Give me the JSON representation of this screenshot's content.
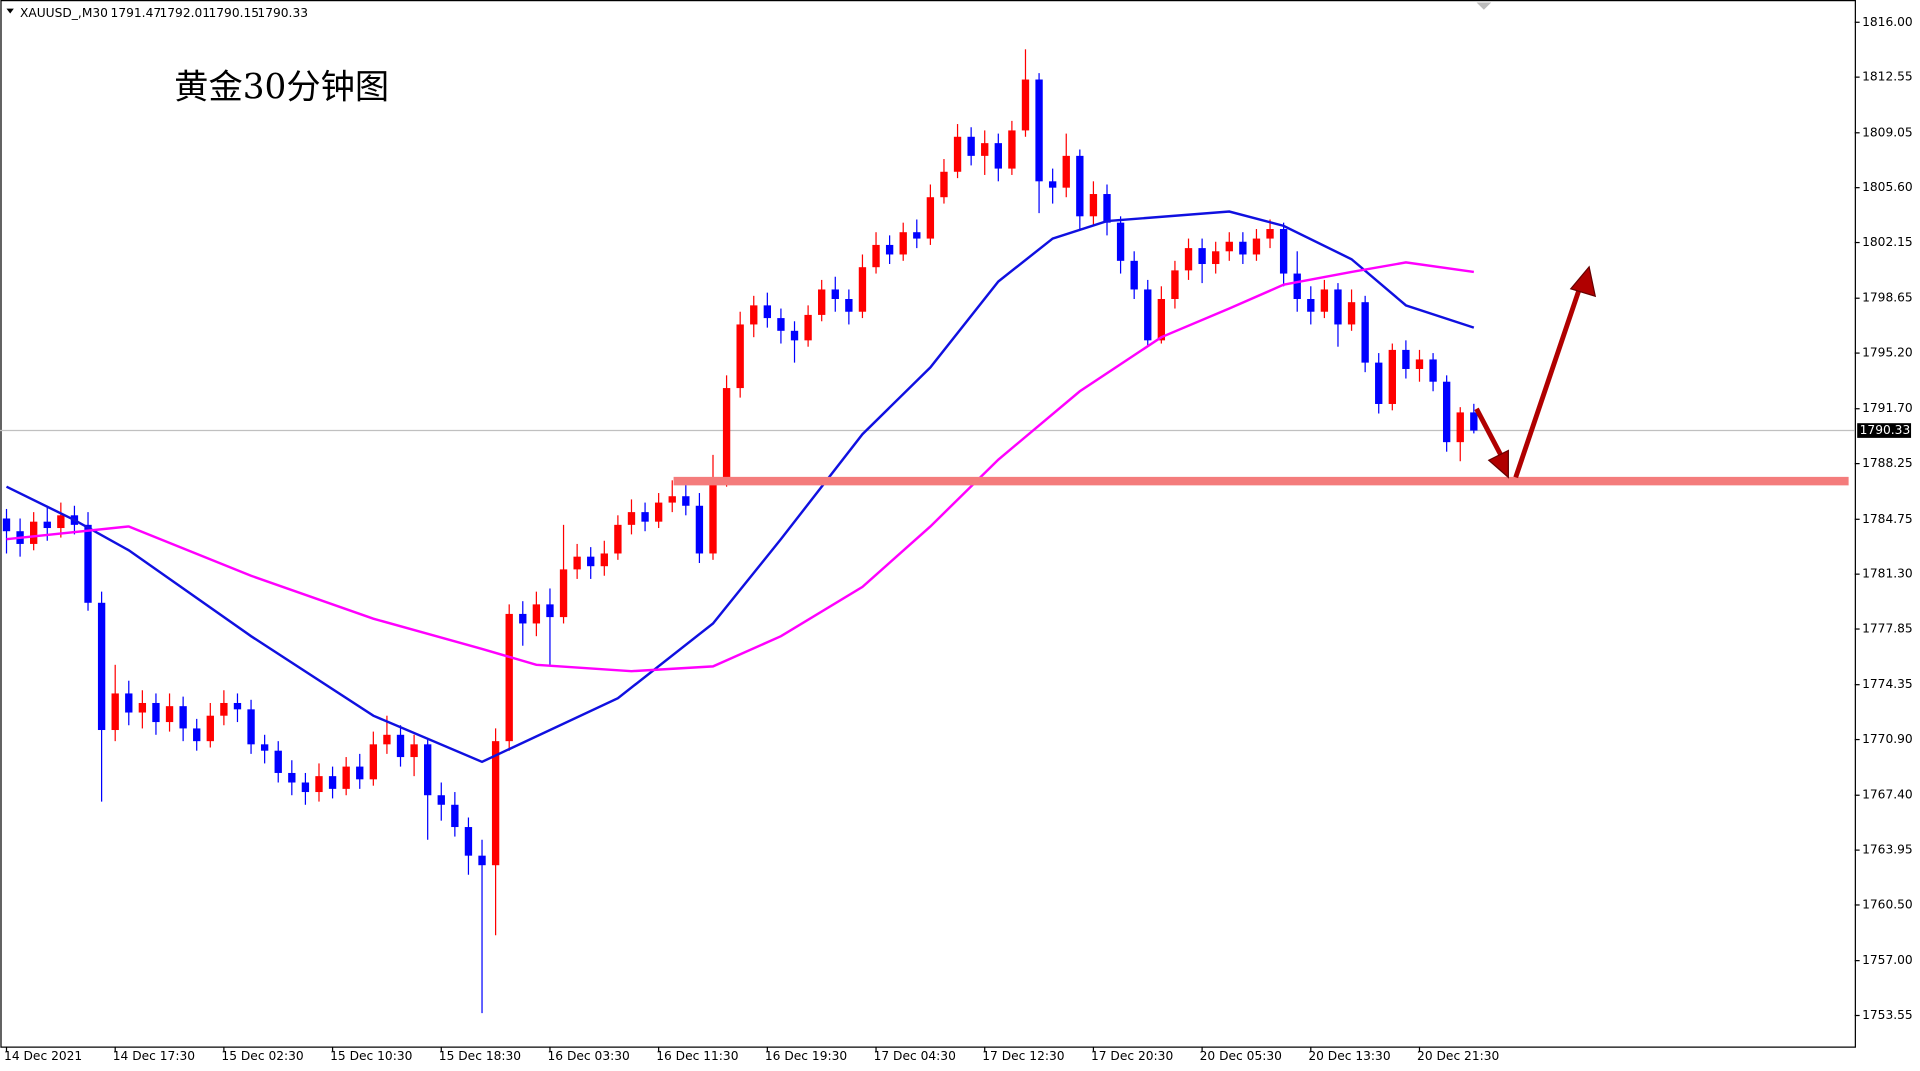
{
  "chart_data": {
    "type": "candlestick",
    "symbol": "XAUUSD_,M30",
    "header_values": [
      1791.47,
      1792.01,
      1790.15,
      1790.33
    ],
    "annotation": "黄金30分钟图",
    "categories": [
      "14 Dec 2021",
      null,
      null,
      null,
      null,
      null,
      null,
      null,
      "14 Dec 17:30",
      null,
      null,
      null,
      null,
      null,
      null,
      null,
      "15 Dec 02:30",
      null,
      null,
      null,
      null,
      null,
      null,
      null,
      "15 Dec 10:30",
      null,
      null,
      null,
      null,
      null,
      null,
      null,
      "15 Dec 18:30",
      null,
      null,
      null,
      null,
      null,
      null,
      null,
      "16 Dec 03:30",
      null,
      null,
      null,
      null,
      null,
      null,
      null,
      "16 Dec 11:30",
      null,
      null,
      null,
      null,
      null,
      null,
      null,
      "16 Dec 19:30",
      null,
      null,
      null,
      null,
      null,
      null,
      null,
      "17 Dec 04:30",
      null,
      null,
      null,
      null,
      null,
      null,
      null,
      "17 Dec 12:30",
      null,
      null,
      null,
      null,
      null,
      null,
      null,
      "17 Dec 20:30",
      null,
      null,
      null,
      null,
      null,
      null,
      null,
      "20 Dec 05:30",
      null,
      null,
      null,
      null,
      null,
      null,
      null,
      "20 Dec 13:30",
      null,
      null,
      null,
      null,
      null,
      null,
      null,
      "20 Dec 21:30",
      null,
      null,
      null,
      null
    ],
    "open": [
      1784.8,
      1784.0,
      1783.2,
      1784.6,
      1784.2,
      1785.0,
      1784.4,
      1779.5,
      1771.5,
      1773.8,
      1772.6,
      1773.2,
      1772.0,
      1773.0,
      1771.6,
      1770.8,
      1772.4,
      1773.2,
      1772.8,
      1770.6,
      1770.2,
      1768.8,
      1768.2,
      1767.6,
      1768.6,
      1767.8,
      1769.2,
      1768.4,
      1770.6,
      1771.2,
      1769.8,
      1770.6,
      1767.4,
      1766.8,
      1765.4,
      1763.6,
      1763.0,
      1770.8,
      1778.8,
      1778.2,
      1779.4,
      1778.6,
      1781.6,
      1782.4,
      1781.8,
      1782.6,
      1784.4,
      1785.2,
      1784.6,
      1785.8,
      1786.2,
      1785.6,
      1782.6,
      1787.2,
      1793.0,
      1797.0,
      1798.2,
      1797.4,
      1796.6,
      1796.0,
      1797.6,
      1799.2,
      1798.6,
      1797.8,
      1800.6,
      1802.0,
      1801.4,
      1802.8,
      1802.4,
      1805.0,
      1806.6,
      1808.8,
      1807.6,
      1808.4,
      1806.8,
      1809.2,
      1812.4,
      1806.0,
      1805.6,
      1807.6,
      1803.8,
      1805.2,
      1803.4,
      1801.0,
      1799.2,
      1796.0,
      1798.6,
      1800.4,
      1801.8,
      1800.8,
      1801.6,
      1802.2,
      1801.4,
      1802.4,
      1803.0,
      1800.2,
      1798.6,
      1797.8,
      1799.2,
      1797.0,
      1798.4,
      1794.6,
      1792.0,
      1795.4,
      1794.2,
      1794.8,
      1793.4,
      1789.6,
      1791.47
    ],
    "high": [
      1785.4,
      1784.8,
      1785.2,
      1785.6,
      1785.8,
      1785.6,
      1785.2,
      1780.2,
      1775.6,
      1774.6,
      1774.0,
      1773.8,
      1773.8,
      1773.6,
      1772.2,
      1773.2,
      1774.0,
      1773.8,
      1773.4,
      1771.2,
      1770.8,
      1769.6,
      1768.8,
      1769.4,
      1769.2,
      1769.8,
      1770.0,
      1771.4,
      1772.4,
      1771.8,
      1771.2,
      1771.0,
      1768.2,
      1767.6,
      1766.0,
      1764.6,
      1771.6,
      1779.4,
      1779.6,
      1780.2,
      1780.4,
      1784.4,
      1783.2,
      1783.0,
      1783.4,
      1785.0,
      1786.0,
      1785.8,
      1786.4,
      1787.2,
      1787.0,
      1786.4,
      1788.8,
      1793.8,
      1797.8,
      1798.8,
      1799.0,
      1798.0,
      1797.2,
      1798.2,
      1799.8,
      1800.0,
      1799.2,
      1801.4,
      1802.8,
      1802.6,
      1803.4,
      1803.6,
      1805.8,
      1807.4,
      1809.6,
      1809.4,
      1809.2,
      1809.0,
      1809.8,
      1814.3,
      1812.8,
      1806.8,
      1809.0,
      1808.0,
      1806.0,
      1805.8,
      1803.8,
      1801.6,
      1799.8,
      1799.4,
      1801.0,
      1802.4,
      1802.4,
      1802.2,
      1802.8,
      1802.8,
      1803.0,
      1803.6,
      1803.4,
      1801.6,
      1799.4,
      1799.8,
      1799.6,
      1799.2,
      1798.8,
      1795.2,
      1795.8,
      1796.0,
      1795.4,
      1795.2,
      1793.8,
      1791.8,
      1792.01
    ],
    "low": [
      1782.6,
      1782.4,
      1782.8,
      1783.4,
      1783.6,
      1783.8,
      1779.0,
      1767.0,
      1770.8,
      1771.8,
      1771.6,
      1771.2,
      1771.4,
      1770.8,
      1770.2,
      1770.4,
      1771.8,
      1772.0,
      1770.0,
      1769.4,
      1768.2,
      1767.4,
      1766.8,
      1767.0,
      1767.2,
      1767.4,
      1767.8,
      1768.0,
      1770.0,
      1769.2,
      1768.6,
      1764.6,
      1765.8,
      1764.8,
      1762.4,
      1753.7,
      1758.6,
      1770.2,
      1776.8,
      1777.4,
      1775.6,
      1778.2,
      1781.0,
      1781.0,
      1781.2,
      1782.2,
      1783.8,
      1784.0,
      1784.2,
      1785.2,
      1785.0,
      1782.0,
      1782.2,
      1786.8,
      1792.4,
      1796.2,
      1796.8,
      1795.8,
      1794.6,
      1795.6,
      1797.2,
      1797.8,
      1797.0,
      1797.4,
      1800.2,
      1800.8,
      1801.0,
      1801.8,
      1802.0,
      1804.6,
      1806.2,
      1807.0,
      1806.4,
      1806.0,
      1806.4,
      1808.8,
      1804.0,
      1804.6,
      1805.0,
      1803.0,
      1803.2,
      1802.6,
      1800.2,
      1798.6,
      1795.6,
      1795.8,
      1798.0,
      1799.8,
      1799.6,
      1800.2,
      1801.0,
      1800.8,
      1801.0,
      1801.8,
      1799.4,
      1797.8,
      1797.0,
      1797.4,
      1795.6,
      1796.6,
      1794.0,
      1791.4,
      1791.6,
      1793.6,
      1793.4,
      1792.8,
      1789.0,
      1788.4,
      1790.15
    ],
    "close": [
      1784.0,
      1783.2,
      1784.6,
      1784.2,
      1785.0,
      1784.4,
      1779.5,
      1771.5,
      1773.8,
      1772.6,
      1773.2,
      1772.0,
      1773.0,
      1771.6,
      1770.8,
      1772.4,
      1773.2,
      1772.8,
      1770.6,
      1770.2,
      1768.8,
      1768.2,
      1767.6,
      1768.6,
      1767.8,
      1769.2,
      1768.4,
      1770.6,
      1771.2,
      1769.8,
      1770.6,
      1767.4,
      1766.8,
      1765.4,
      1763.6,
      1763.0,
      1770.8,
      1778.8,
      1778.2,
      1779.4,
      1778.6,
      1781.6,
      1782.4,
      1781.8,
      1782.6,
      1784.4,
      1785.2,
      1784.6,
      1785.8,
      1786.2,
      1785.6,
      1782.6,
      1787.2,
      1793.0,
      1797.0,
      1798.2,
      1797.4,
      1796.6,
      1796.0,
      1797.6,
      1799.2,
      1798.6,
      1797.8,
      1800.6,
      1802.0,
      1801.4,
      1802.8,
      1802.4,
      1805.0,
      1806.6,
      1808.8,
      1807.6,
      1808.4,
      1806.8,
      1809.2,
      1812.4,
      1806.0,
      1805.6,
      1807.6,
      1803.8,
      1805.2,
      1803.4,
      1801.0,
      1799.2,
      1796.0,
      1798.6,
      1800.4,
      1801.8,
      1800.8,
      1801.6,
      1802.2,
      1801.4,
      1802.4,
      1803.0,
      1800.2,
      1798.6,
      1797.8,
      1799.2,
      1797.0,
      1798.4,
      1794.6,
      1792.0,
      1795.4,
      1794.2,
      1794.8,
      1793.4,
      1789.6,
      1791.47,
      1790.33
    ],
    "up_color": "#ff0000",
    "down_color": "#0000ff",
    "moving_averages": [
      {
        "color": "#1010e0",
        "x": [
          0,
          5,
          9,
          18,
          27,
          35,
          37,
          45,
          52,
          57,
          63,
          68,
          73,
          77,
          81,
          90,
          94,
          99,
          103,
          108
        ],
        "values": [
          1786.8,
          1784.7,
          1782.8,
          1777.4,
          1772.4,
          1769.5,
          1770.3,
          1773.5,
          1778.2,
          1783.5,
          1790.1,
          1794.3,
          1799.7,
          1802.4,
          1803.5,
          1804.1,
          1803.2,
          1801.1,
          1798.2,
          1796.8
        ]
      },
      {
        "color": "#ff00ff",
        "x": [
          0,
          9,
          18,
          27,
          35,
          39,
          46,
          52,
          57,
          63,
          68,
          73,
          79,
          85,
          90,
          94,
          99,
          103,
          108
        ],
        "values": [
          1783.5,
          1784.3,
          1781.2,
          1778.5,
          1776.6,
          1775.6,
          1775.2,
          1775.5,
          1777.4,
          1780.5,
          1784.3,
          1788.5,
          1792.8,
          1796.2,
          1798.0,
          1799.5,
          1800.3,
          1800.9,
          1800.3
        ]
      }
    ],
    "support_level": 1787.15,
    "support_color": "#f47c7c",
    "current_price": 1790.33,
    "ylim": [
      1751.6,
      1817.4
    ],
    "yticks": [
      {
        "value": 1816.0,
        "label": "1816.00"
      },
      {
        "value": 1812.55,
        "label": "1812.55"
      },
      {
        "value": 1809.05,
        "label": "1809.05"
      },
      {
        "value": 1805.6,
        "label": "1805.60"
      },
      {
        "value": 1802.15,
        "label": "1802.15"
      },
      {
        "value": 1798.65,
        "label": "1798.65"
      },
      {
        "value": 1795.2,
        "label": "1795.20"
      },
      {
        "value": 1791.7,
        "label": "1791.70"
      },
      {
        "value": 1788.25,
        "label": "1788.25"
      },
      {
        "value": 1784.75,
        "label": "1784.75"
      },
      {
        "value": 1781.3,
        "label": "1781.30"
      },
      {
        "value": 1777.85,
        "label": "1777.85"
      },
      {
        "value": 1774.35,
        "label": "1774.35"
      },
      {
        "value": 1770.9,
        "label": "1770.90"
      },
      {
        "value": 1767.4,
        "label": "1767.40"
      },
      {
        "value": 1763.95,
        "label": "1763.95"
      },
      {
        "value": 1760.5,
        "label": "1760.50"
      },
      {
        "value": 1757.0,
        "label": "1757.00"
      },
      {
        "value": 1753.55,
        "label": "1753.55"
      }
    ]
  }
}
